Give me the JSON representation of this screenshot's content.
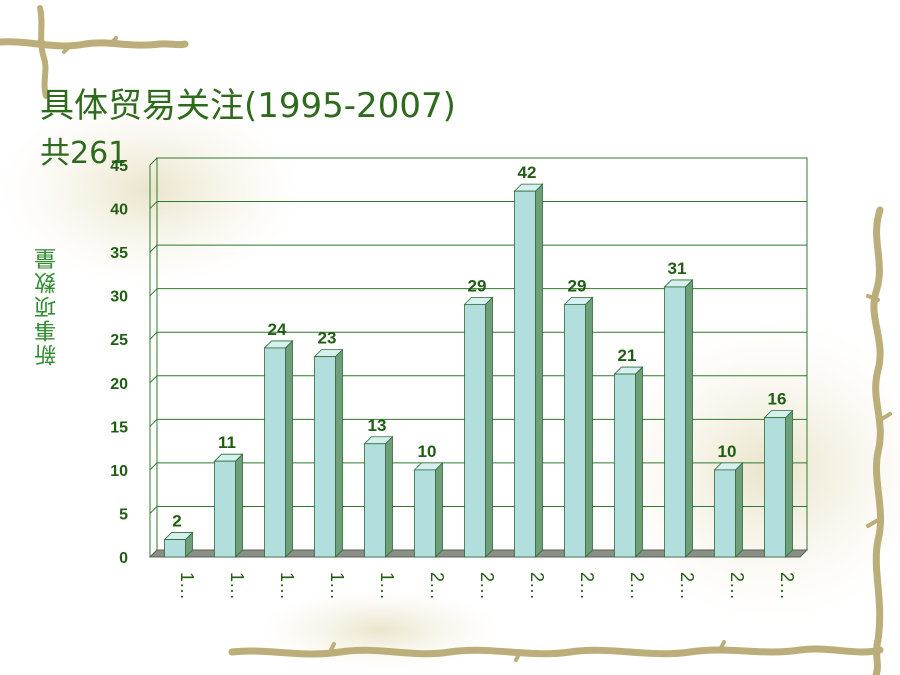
{
  "slide": {
    "title": "具体贸易关注(1995-2007)",
    "subtitle": "共261"
  },
  "chart_data": {
    "type": "bar",
    "title": "",
    "xlabel": "",
    "ylabel": "新事项数量",
    "categories": [
      "1…",
      "1…",
      "1…",
      "1…",
      "1…",
      "2…",
      "2…",
      "2…",
      "2…",
      "2…",
      "2…",
      "2…",
      "2…"
    ],
    "values": [
      2,
      11,
      24,
      23,
      13,
      10,
      29,
      42,
      29,
      21,
      31,
      10,
      16
    ],
    "ylim": [
      0,
      45
    ],
    "yticks": [
      0,
      5,
      10,
      15,
      20,
      25,
      30,
      35,
      40,
      45
    ],
    "grid": true,
    "legend": "none",
    "bar_color": "#b3dede",
    "bar_side_color": "#6f9f7a",
    "bar_top_color": "#d6efef",
    "bar_edge_color": "#2f6a35",
    "grid_color": "#2f7a2f",
    "text_color": "#1f5e12"
  }
}
